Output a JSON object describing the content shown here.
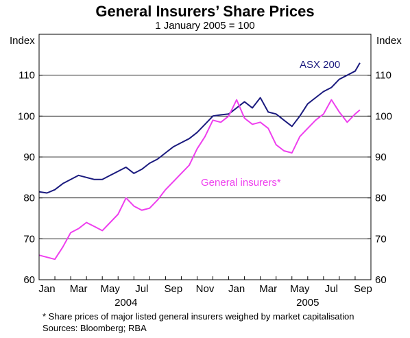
{
  "chart_data": {
    "type": "line",
    "title": "General Insurers’ Share Prices",
    "subtitle": "1 January 2005 = 100",
    "ylabel_left": "Index",
    "ylabel_right": "Index",
    "ylim": [
      60,
      120
    ],
    "yticks": [
      60,
      70,
      80,
      90,
      100,
      110
    ],
    "grid": true,
    "x_month_labels": [
      "Jan",
      "Mar",
      "May",
      "Jul",
      "Sep",
      "Nov",
      "Jan",
      "Mar",
      "May",
      "Jul",
      "Sep"
    ],
    "x_month_index": [
      0,
      2,
      4,
      6,
      8,
      10,
      12,
      14,
      16,
      18,
      20
    ],
    "x_year_labels": [
      {
        "label": "2004",
        "month_index": 5
      },
      {
        "label": "2005",
        "month_index": 16.5
      }
    ],
    "x_range_months": [
      0,
      21
    ],
    "series": [
      {
        "name": "ASX 200",
        "color": "#1a1a7e",
        "x_month": [
          0,
          0.5,
          1,
          1.5,
          2,
          2.5,
          3,
          3.5,
          4,
          4.5,
          5,
          5.5,
          6,
          6.5,
          7,
          7.5,
          8,
          8.5,
          9,
          9.5,
          10,
          10.5,
          11,
          11.5,
          12,
          12.5,
          13,
          13.5,
          14,
          14.5,
          15,
          15.5,
          16,
          16.5,
          17,
          17.5,
          18,
          18.5,
          19,
          19.5,
          20,
          20.3
        ],
        "values": [
          81.5,
          81.2,
          82,
          83.5,
          84.5,
          85.5,
          85,
          84.5,
          84.5,
          85.5,
          86.5,
          87.5,
          86,
          87,
          88.5,
          89.5,
          91,
          92.5,
          93.5,
          94.5,
          96,
          98,
          100,
          100.3,
          100.5,
          102,
          103.5,
          102,
          104.5,
          101,
          100.5,
          99,
          97.5,
          100,
          103,
          104.5,
          106,
          107,
          109,
          110,
          111,
          113
        ]
      },
      {
        "name": "General insurers*",
        "color": "#ee3fee",
        "x_month": [
          0,
          0.5,
          1,
          1.5,
          2,
          2.5,
          3,
          3.5,
          4,
          4.5,
          5,
          5.5,
          6,
          6.5,
          7,
          7.5,
          8,
          8.5,
          9,
          9.5,
          10,
          10.5,
          11,
          11.5,
          12,
          12.5,
          13,
          13.5,
          14,
          14.5,
          15,
          15.5,
          16,
          16.5,
          17,
          17.5,
          18,
          18.5,
          19,
          19.5,
          20,
          20.3
        ],
        "values": [
          66,
          65.5,
          65,
          68,
          71.5,
          72.5,
          74,
          73,
          72,
          74,
          76,
          80,
          78,
          77,
          77.5,
          79.5,
          82,
          84,
          86,
          88,
          92,
          95,
          99,
          98.5,
          100,
          104,
          99.5,
          98,
          98.5,
          97,
          93,
          91.5,
          91,
          95,
          97,
          99,
          100.5,
          104,
          101,
          98.5,
          100.5,
          101.5
        ]
      }
    ]
  },
  "notes": {
    "footnote": "* Share prices of major listed general insurers weighed by market capitalisation",
    "sources": "Sources: Bloomberg; RBA"
  }
}
